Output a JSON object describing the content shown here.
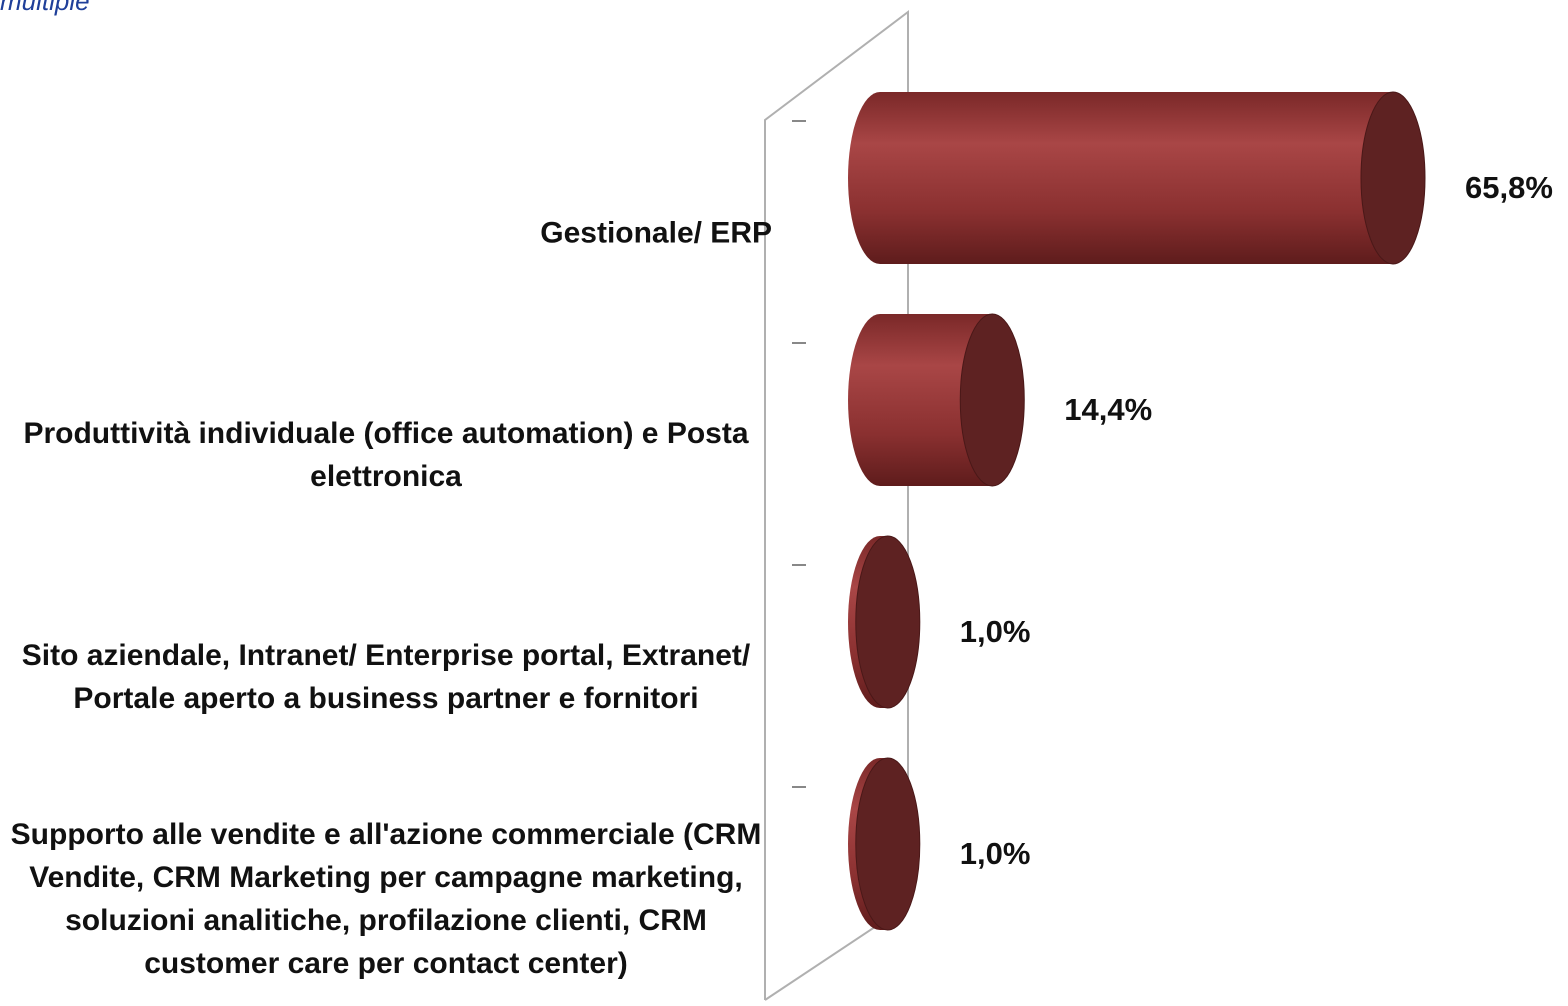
{
  "chart_data": {
    "type": "cylinder-bar",
    "note": "multiple",
    "categories": [
      "Gestionale/ ERP",
      "Produttività individuale (office automation) e Posta elettronica",
      "Sito aziendale, Intranet/ Enterprise portal, Extranet/ Portale aperto a business partner e fornitori",
      "Supporto alle vendite e all'azione commerciale (CRM Vendite, CRM Marketing per campagne marketing, soluzioni analitiche, profilazione clienti, CRM customer care per contact center)"
    ],
    "values": [
      65.8,
      14.4,
      1.0,
      1.0
    ],
    "value_labels": [
      "65,8%",
      "14,4%",
      "1,0%",
      "1,0%"
    ],
    "color": "#9a3a3a"
  }
}
